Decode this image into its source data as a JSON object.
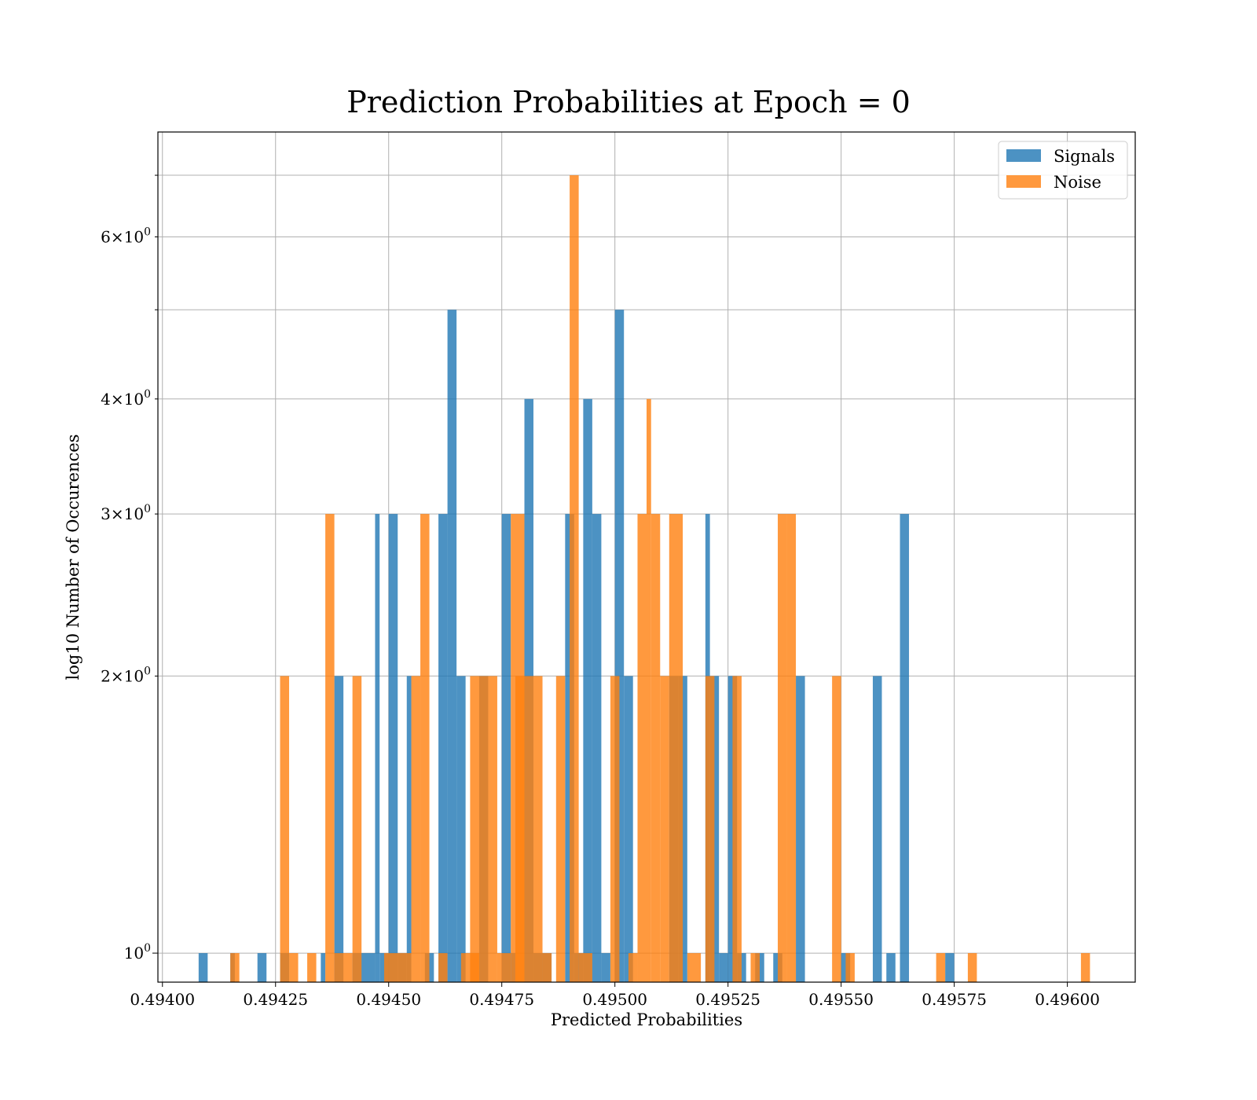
{
  "chart_data": {
    "type": "bar",
    "title": "Prediction Probabilities at Epoch = 0",
    "xlabel": "Predicted Probabilities",
    "ylabel": "log10 Number of Occurences",
    "xlim": [
      0.49399,
      0.49615
    ],
    "ylim": [
      0.93,
      7.8
    ],
    "yscale": "log",
    "grid": true,
    "legend_position": "top-right",
    "x_ticks": [
      "0.49400",
      "0.49425",
      "0.49450",
      "0.49475",
      "0.49500",
      "0.49525",
      "0.49550",
      "0.49575",
      "0.49600"
    ],
    "x_tick_values": [
      0.494,
      0.49425,
      0.4945,
      0.49475,
      0.495,
      0.49525,
      0.4955,
      0.49575,
      0.496
    ],
    "y_major_ticks": [
      {
        "value": 1,
        "base": "10",
        "exp": "0"
      }
    ],
    "y_minor_ticks": [
      {
        "value": 2,
        "coef": "2",
        "base": "10",
        "exp": "0"
      },
      {
        "value": 3,
        "coef": "3",
        "base": "10",
        "exp": "0"
      },
      {
        "value": 4,
        "coef": "4",
        "base": "10",
        "exp": "0"
      },
      {
        "value": 5
      },
      {
        "value": 6,
        "coef": "6",
        "base": "10",
        "exp": "0"
      },
      {
        "value": 7
      }
    ],
    "series": [
      {
        "name": "Signals",
        "color": "#1f77b4",
        "bins": [
          [
            0.49408,
            0.4941,
            1
          ],
          [
            0.49415,
            0.49416,
            1
          ],
          [
            0.49421,
            0.49423,
            1
          ],
          [
            0.49426,
            0.49428,
            1
          ],
          [
            0.49435,
            0.49436,
            1
          ],
          [
            0.49438,
            0.4944,
            2
          ],
          [
            0.49442,
            0.49447,
            1
          ],
          [
            0.49447,
            0.49448,
            3
          ],
          [
            0.49448,
            0.4945,
            1
          ],
          [
            0.4945,
            0.49452,
            3
          ],
          [
            0.49452,
            0.49454,
            1
          ],
          [
            0.49454,
            0.49455,
            2
          ],
          [
            0.49458,
            0.4946,
            1
          ],
          [
            0.49461,
            0.49463,
            3
          ],
          [
            0.49463,
            0.49465,
            5
          ],
          [
            0.49465,
            0.49467,
            2
          ],
          [
            0.4947,
            0.49472,
            2
          ],
          [
            0.49475,
            0.49477,
            3
          ],
          [
            0.49477,
            0.49478,
            1
          ],
          [
            0.4948,
            0.49482,
            4
          ],
          [
            0.49482,
            0.49484,
            1
          ],
          [
            0.49484,
            0.49486,
            1
          ],
          [
            0.49489,
            0.49491,
            3
          ],
          [
            0.49491,
            0.49493,
            1
          ],
          [
            0.49493,
            0.49495,
            4
          ],
          [
            0.49495,
            0.49497,
            3
          ],
          [
            0.49497,
            0.49499,
            1
          ],
          [
            0.495,
            0.49502,
            5
          ],
          [
            0.49502,
            0.49504,
            2
          ],
          [
            0.49512,
            0.49514,
            2
          ],
          [
            0.49514,
            0.49516,
            2
          ],
          [
            0.4952,
            0.49521,
            3
          ],
          [
            0.49521,
            0.49523,
            2
          ],
          [
            0.49523,
            0.49525,
            1
          ],
          [
            0.49525,
            0.49527,
            2
          ],
          [
            0.49527,
            0.49529,
            1
          ],
          [
            0.49531,
            0.49533,
            1
          ],
          [
            0.49535,
            0.49537,
            1
          ],
          [
            0.4954,
            0.49542,
            2
          ],
          [
            0.4955,
            0.49552,
            1
          ],
          [
            0.49557,
            0.49559,
            2
          ],
          [
            0.4956,
            0.49562,
            1
          ],
          [
            0.49563,
            0.49565,
            3
          ],
          [
            0.49573,
            0.49575,
            1
          ]
        ]
      },
      {
        "name": "Noise",
        "color": "#ff7f0e",
        "bins": [
          [
            0.49415,
            0.49417,
            1
          ],
          [
            0.49426,
            0.49428,
            2
          ],
          [
            0.49428,
            0.4943,
            1
          ],
          [
            0.49432,
            0.49434,
            1
          ],
          [
            0.49436,
            0.49438,
            3
          ],
          [
            0.49438,
            0.49442,
            1
          ],
          [
            0.49442,
            0.49444,
            2
          ],
          [
            0.49449,
            0.49455,
            1
          ],
          [
            0.49455,
            0.49457,
            2
          ],
          [
            0.49457,
            0.49459,
            3
          ],
          [
            0.49461,
            0.49463,
            1
          ],
          [
            0.49466,
            0.4947,
            1
          ],
          [
            0.49468,
            0.49474,
            2
          ],
          [
            0.49474,
            0.49477,
            1
          ],
          [
            0.49477,
            0.4948,
            3
          ],
          [
            0.49478,
            0.49484,
            2
          ],
          [
            0.49484,
            0.49486,
            1
          ],
          [
            0.49487,
            0.49489,
            2
          ],
          [
            0.4949,
            0.49492,
            7
          ],
          [
            0.49492,
            0.49495,
            1
          ],
          [
            0.49499,
            0.49501,
            2
          ],
          [
            0.49503,
            0.49505,
            1
          ],
          [
            0.49505,
            0.49507,
            3
          ],
          [
            0.49507,
            0.49508,
            4
          ],
          [
            0.49508,
            0.4951,
            3
          ],
          [
            0.4951,
            0.49512,
            2
          ],
          [
            0.49512,
            0.49515,
            3
          ],
          [
            0.49516,
            0.49519,
            1
          ],
          [
            0.4952,
            0.49522,
            2
          ],
          [
            0.49526,
            0.49528,
            2
          ],
          [
            0.4953,
            0.49532,
            1
          ],
          [
            0.49536,
            0.49538,
            3
          ],
          [
            0.49538,
            0.4954,
            3
          ],
          [
            0.49548,
            0.4955,
            2
          ],
          [
            0.49551,
            0.49553,
            1
          ],
          [
            0.49571,
            0.49573,
            1
          ],
          [
            0.49578,
            0.4958,
            1
          ],
          [
            0.49603,
            0.49605,
            1
          ]
        ]
      }
    ]
  }
}
